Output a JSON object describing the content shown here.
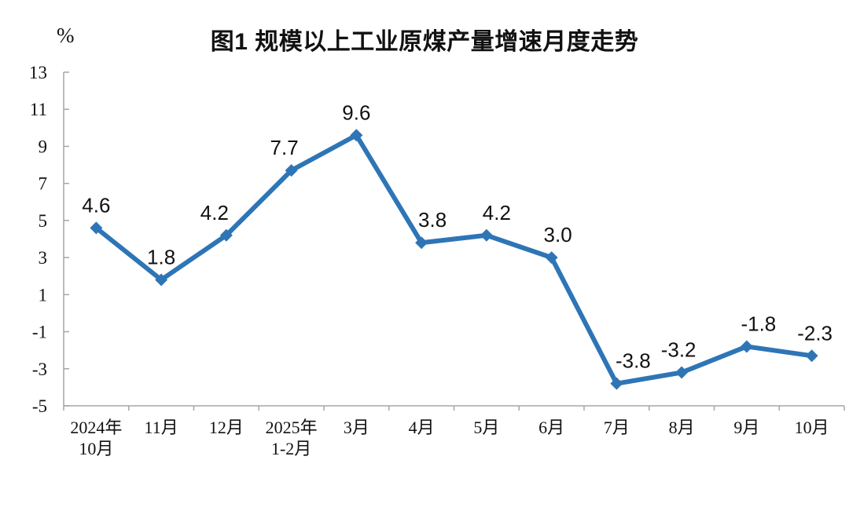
{
  "chart_data": {
    "type": "line",
    "title": "图1 规模以上工业原煤产量增速月度走势",
    "unit_label": "%",
    "categories": [
      "2024年\n10月",
      "11月",
      "12月",
      "2025年\n1-2月",
      "3月",
      "4月",
      "5月",
      "6月",
      "7月",
      "8月",
      "9月",
      "10月"
    ],
    "values": [
      4.6,
      1.8,
      4.2,
      7.7,
      9.6,
      3.8,
      4.2,
      3.0,
      -3.8,
      -3.2,
      -1.8,
      -2.3
    ],
    "point_labels": [
      "4.6",
      "1.8",
      "4.2",
      "7.7",
      "9.6",
      "3.8",
      "4.2",
      "3.0",
      "-3.8",
      "-3.2",
      "-1.8",
      "-2.3"
    ],
    "ylim": [
      -5,
      13
    ],
    "ytick_step": 2,
    "ytick_labels": [
      "13",
      "11",
      "9",
      "7",
      "5",
      "3",
      "1",
      "-1",
      "-3",
      "-5"
    ],
    "grid": false,
    "legend_position": "none",
    "marker": "diamond",
    "line_color": "#2E75B6",
    "axis_color": "#A6A6A6",
    "text_color": "#111111",
    "label_dx": [
      0,
      0,
      -15,
      -9,
      0,
      14,
      13,
      8,
      21,
      -4,
      15,
      4
    ]
  }
}
